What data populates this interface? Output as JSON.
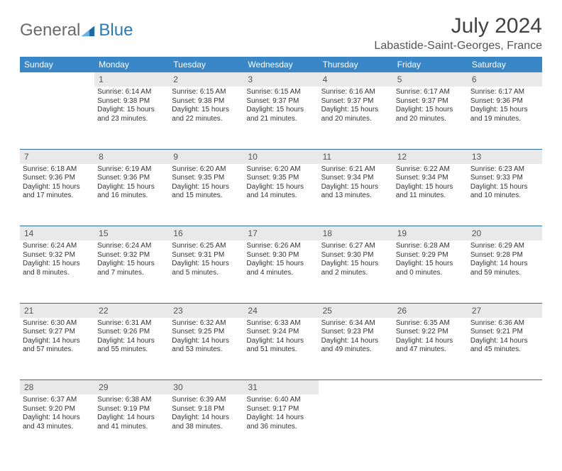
{
  "brand": {
    "part1": "General",
    "part2": "Blue",
    "mark_color": "#1f6aa5"
  },
  "title": "July 2024",
  "location": "Labastide-Saint-Georges, France",
  "colors": {
    "header_bg": "#3a87c8",
    "header_text": "#ffffff",
    "daynum_bg": "#e9e9e9",
    "rule": "#2f6fa3",
    "brand_gray": "#6a6a6a",
    "brand_blue": "#2a7ab8"
  },
  "weekdays": [
    "Sunday",
    "Monday",
    "Tuesday",
    "Wednesday",
    "Thursday",
    "Friday",
    "Saturday"
  ],
  "weeks": [
    {
      "nums": [
        "",
        "1",
        "2",
        "3",
        "4",
        "5",
        "6"
      ],
      "cells": [
        null,
        {
          "sr": "Sunrise: 6:14 AM",
          "ss": "Sunset: 9:38 PM",
          "d1": "Daylight: 15 hours",
          "d2": "and 23 minutes."
        },
        {
          "sr": "Sunrise: 6:15 AM",
          "ss": "Sunset: 9:38 PM",
          "d1": "Daylight: 15 hours",
          "d2": "and 22 minutes."
        },
        {
          "sr": "Sunrise: 6:15 AM",
          "ss": "Sunset: 9:37 PM",
          "d1": "Daylight: 15 hours",
          "d2": "and 21 minutes."
        },
        {
          "sr": "Sunrise: 6:16 AM",
          "ss": "Sunset: 9:37 PM",
          "d1": "Daylight: 15 hours",
          "d2": "and 20 minutes."
        },
        {
          "sr": "Sunrise: 6:17 AM",
          "ss": "Sunset: 9:37 PM",
          "d1": "Daylight: 15 hours",
          "d2": "and 20 minutes."
        },
        {
          "sr": "Sunrise: 6:17 AM",
          "ss": "Sunset: 9:36 PM",
          "d1": "Daylight: 15 hours",
          "d2": "and 19 minutes."
        }
      ]
    },
    {
      "nums": [
        "7",
        "8",
        "9",
        "10",
        "11",
        "12",
        "13"
      ],
      "cells": [
        {
          "sr": "Sunrise: 6:18 AM",
          "ss": "Sunset: 9:36 PM",
          "d1": "Daylight: 15 hours",
          "d2": "and 17 minutes."
        },
        {
          "sr": "Sunrise: 6:19 AM",
          "ss": "Sunset: 9:36 PM",
          "d1": "Daylight: 15 hours",
          "d2": "and 16 minutes."
        },
        {
          "sr": "Sunrise: 6:20 AM",
          "ss": "Sunset: 9:35 PM",
          "d1": "Daylight: 15 hours",
          "d2": "and 15 minutes."
        },
        {
          "sr": "Sunrise: 6:20 AM",
          "ss": "Sunset: 9:35 PM",
          "d1": "Daylight: 15 hours",
          "d2": "and 14 minutes."
        },
        {
          "sr": "Sunrise: 6:21 AM",
          "ss": "Sunset: 9:34 PM",
          "d1": "Daylight: 15 hours",
          "d2": "and 13 minutes."
        },
        {
          "sr": "Sunrise: 6:22 AM",
          "ss": "Sunset: 9:34 PM",
          "d1": "Daylight: 15 hours",
          "d2": "and 11 minutes."
        },
        {
          "sr": "Sunrise: 6:23 AM",
          "ss": "Sunset: 9:33 PM",
          "d1": "Daylight: 15 hours",
          "d2": "and 10 minutes."
        }
      ]
    },
    {
      "nums": [
        "14",
        "15",
        "16",
        "17",
        "18",
        "19",
        "20"
      ],
      "cells": [
        {
          "sr": "Sunrise: 6:24 AM",
          "ss": "Sunset: 9:32 PM",
          "d1": "Daylight: 15 hours",
          "d2": "and 8 minutes."
        },
        {
          "sr": "Sunrise: 6:24 AM",
          "ss": "Sunset: 9:32 PM",
          "d1": "Daylight: 15 hours",
          "d2": "and 7 minutes."
        },
        {
          "sr": "Sunrise: 6:25 AM",
          "ss": "Sunset: 9:31 PM",
          "d1": "Daylight: 15 hours",
          "d2": "and 5 minutes."
        },
        {
          "sr": "Sunrise: 6:26 AM",
          "ss": "Sunset: 9:30 PM",
          "d1": "Daylight: 15 hours",
          "d2": "and 4 minutes."
        },
        {
          "sr": "Sunrise: 6:27 AM",
          "ss": "Sunset: 9:30 PM",
          "d1": "Daylight: 15 hours",
          "d2": "and 2 minutes."
        },
        {
          "sr": "Sunrise: 6:28 AM",
          "ss": "Sunset: 9:29 PM",
          "d1": "Daylight: 15 hours",
          "d2": "and 0 minutes."
        },
        {
          "sr": "Sunrise: 6:29 AM",
          "ss": "Sunset: 9:28 PM",
          "d1": "Daylight: 14 hours",
          "d2": "and 59 minutes."
        }
      ]
    },
    {
      "nums": [
        "21",
        "22",
        "23",
        "24",
        "25",
        "26",
        "27"
      ],
      "cells": [
        {
          "sr": "Sunrise: 6:30 AM",
          "ss": "Sunset: 9:27 PM",
          "d1": "Daylight: 14 hours",
          "d2": "and 57 minutes."
        },
        {
          "sr": "Sunrise: 6:31 AM",
          "ss": "Sunset: 9:26 PM",
          "d1": "Daylight: 14 hours",
          "d2": "and 55 minutes."
        },
        {
          "sr": "Sunrise: 6:32 AM",
          "ss": "Sunset: 9:25 PM",
          "d1": "Daylight: 14 hours",
          "d2": "and 53 minutes."
        },
        {
          "sr": "Sunrise: 6:33 AM",
          "ss": "Sunset: 9:24 PM",
          "d1": "Daylight: 14 hours",
          "d2": "and 51 minutes."
        },
        {
          "sr": "Sunrise: 6:34 AM",
          "ss": "Sunset: 9:23 PM",
          "d1": "Daylight: 14 hours",
          "d2": "and 49 minutes."
        },
        {
          "sr": "Sunrise: 6:35 AM",
          "ss": "Sunset: 9:22 PM",
          "d1": "Daylight: 14 hours",
          "d2": "and 47 minutes."
        },
        {
          "sr": "Sunrise: 6:36 AM",
          "ss": "Sunset: 9:21 PM",
          "d1": "Daylight: 14 hours",
          "d2": "and 45 minutes."
        }
      ]
    },
    {
      "nums": [
        "28",
        "29",
        "30",
        "31",
        "",
        "",
        ""
      ],
      "cells": [
        {
          "sr": "Sunrise: 6:37 AM",
          "ss": "Sunset: 9:20 PM",
          "d1": "Daylight: 14 hours",
          "d2": "and 43 minutes."
        },
        {
          "sr": "Sunrise: 6:38 AM",
          "ss": "Sunset: 9:19 PM",
          "d1": "Daylight: 14 hours",
          "d2": "and 41 minutes."
        },
        {
          "sr": "Sunrise: 6:39 AM",
          "ss": "Sunset: 9:18 PM",
          "d1": "Daylight: 14 hours",
          "d2": "and 38 minutes."
        },
        {
          "sr": "Sunrise: 6:40 AM",
          "ss": "Sunset: 9:17 PM",
          "d1": "Daylight: 14 hours",
          "d2": "and 36 minutes."
        },
        null,
        null,
        null
      ]
    }
  ]
}
